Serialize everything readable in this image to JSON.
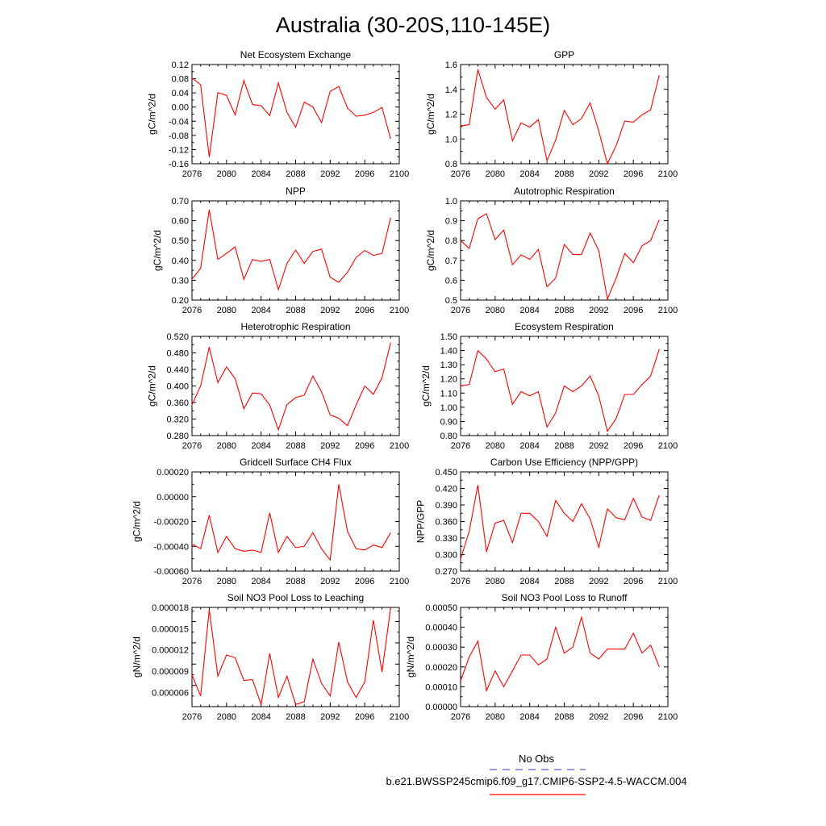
{
  "figure": {
    "title": "Australia (30-20S,110-145E)",
    "legend": {
      "obs_label": "No Obs",
      "obs_color": "#5a5ad8",
      "model_label": "b.e21.BWSSP245cmip6.f09_g17.CMIP6-SSP2-4.5-WACCM.004",
      "model_color": "#ff0000"
    }
  },
  "chart_data": [
    {
      "type": "line",
      "title": "Net Ecosystem Exchange",
      "ylabel": "gC/m^2/d",
      "xlim": [
        2076,
        2100
      ],
      "ylim": [
        -0.16,
        0.12
      ],
      "xticks": [
        "2076",
        "2080",
        "2084",
        "2088",
        "2092",
        "2096",
        "2100"
      ],
      "yticks": [
        "0.12",
        "0.08",
        "0.04",
        "0.00",
        "-0.04",
        "-0.08",
        "-0.12",
        "-0.16"
      ],
      "ytick_values": [
        0.12,
        0.08,
        0.04,
        0.0,
        -0.04,
        -0.08,
        -0.12,
        -0.16
      ],
      "color": "#ff0000",
      "x": [
        2076,
        2077,
        2078,
        2079,
        2080,
        2081,
        2082,
        2083,
        2084,
        2085,
        2086,
        2087,
        2088,
        2089,
        2090,
        2091,
        2092,
        2093,
        2094,
        2095,
        2096,
        2097,
        2098,
        2099
      ],
      "values": [
        0.082,
        0.063,
        -0.141,
        0.041,
        0.033,
        -0.022,
        0.075,
        0.007,
        0.004,
        -0.024,
        0.068,
        -0.015,
        -0.057,
        0.014,
        0.0,
        -0.044,
        0.044,
        0.058,
        -0.003,
        -0.026,
        -0.023,
        -0.015,
        -0.001,
        -0.09
      ]
    },
    {
      "type": "line",
      "title": "GPP",
      "ylabel": "gC/m^2/d",
      "xlim": [
        2076,
        2100
      ],
      "ylim": [
        0.8,
        1.6
      ],
      "xticks": [
        "2076",
        "2080",
        "2084",
        "2088",
        "2092",
        "2096",
        "2100"
      ],
      "yticks": [
        "1.6",
        "1.4",
        "1.2",
        "1.0",
        "0.8"
      ],
      "ytick_values": [
        1.6,
        1.4,
        1.2,
        1.0,
        0.8
      ],
      "color": "#ff0000",
      "x": [
        2076,
        2077,
        2078,
        2079,
        2080,
        2081,
        2082,
        2083,
        2084,
        2085,
        2086,
        2087,
        2088,
        2089,
        2090,
        2091,
        2092,
        2093,
        2094,
        2095,
        2096,
        2097,
        2098,
        2099
      ],
      "values": [
        1.105,
        1.115,
        1.56,
        1.335,
        1.24,
        1.315,
        0.985,
        1.13,
        1.095,
        1.155,
        0.825,
        0.99,
        1.23,
        1.115,
        1.165,
        1.29,
        1.065,
        0.8,
        0.945,
        1.145,
        1.135,
        1.195,
        1.235,
        1.515
      ]
    },
    {
      "type": "line",
      "title": "NPP",
      "ylabel": "gC/m^2/d",
      "xlim": [
        2076,
        2100
      ],
      "ylim": [
        0.2,
        0.7
      ],
      "xticks": [
        "2076",
        "2080",
        "2084",
        "2088",
        "2092",
        "2096",
        "2100"
      ],
      "yticks": [
        "0.70",
        "0.60",
        "0.50",
        "0.40",
        "0.30",
        "0.20"
      ],
      "ytick_values": [
        0.7,
        0.6,
        0.5,
        0.4,
        0.3,
        0.2
      ],
      "color": "#ff0000",
      "x": [
        2076,
        2077,
        2078,
        2079,
        2080,
        2081,
        2082,
        2083,
        2084,
        2085,
        2086,
        2087,
        2088,
        2089,
        2090,
        2091,
        2092,
        2093,
        2094,
        2095,
        2096,
        2097,
        2098,
        2099
      ],
      "values": [
        0.305,
        0.36,
        0.655,
        0.405,
        0.435,
        0.468,
        0.305,
        0.405,
        0.395,
        0.405,
        0.253,
        0.385,
        0.452,
        0.385,
        0.445,
        0.457,
        0.315,
        0.29,
        0.34,
        0.415,
        0.45,
        0.425,
        0.435,
        0.615
      ]
    },
    {
      "type": "line",
      "title": "Autotrophic Respiration",
      "ylabel": "gC/m^2/d",
      "xlim": [
        2076,
        2100
      ],
      "ylim": [
        0.5,
        1.0
      ],
      "xticks": [
        "2076",
        "2080",
        "2084",
        "2088",
        "2092",
        "2096",
        "2100"
      ],
      "yticks": [
        "1.0",
        "0.9",
        "0.8",
        "0.7",
        "0.6",
        "0.5"
      ],
      "ytick_values": [
        1.0,
        0.9,
        0.8,
        0.7,
        0.6,
        0.5
      ],
      "color": "#ff0000",
      "x": [
        2076,
        2077,
        2078,
        2079,
        2080,
        2081,
        2082,
        2083,
        2084,
        2085,
        2086,
        2087,
        2088,
        2089,
        2090,
        2091,
        2092,
        2093,
        2094,
        2095,
        2096,
        2097,
        2098,
        2099
      ],
      "values": [
        0.8,
        0.76,
        0.91,
        0.935,
        0.805,
        0.853,
        0.678,
        0.728,
        0.705,
        0.755,
        0.567,
        0.61,
        0.78,
        0.73,
        0.73,
        0.838,
        0.75,
        0.505,
        0.61,
        0.735,
        0.688,
        0.773,
        0.8,
        0.905
      ]
    },
    {
      "type": "line",
      "title": "Heterotrophic Respiration",
      "ylabel": "gC/m^2/d",
      "xlim": [
        2076,
        2100
      ],
      "ylim": [
        0.28,
        0.52
      ],
      "xticks": [
        "2076",
        "2080",
        "2084",
        "2088",
        "2092",
        "2096",
        "2100"
      ],
      "yticks": [
        "0.520",
        "0.480",
        "0.440",
        "0.400",
        "0.360",
        "0.320",
        "0.280"
      ],
      "ytick_values": [
        0.52,
        0.48,
        0.44,
        0.4,
        0.36,
        0.32,
        0.28
      ],
      "color": "#ff0000",
      "x": [
        2076,
        2077,
        2078,
        2079,
        2080,
        2081,
        2082,
        2083,
        2084,
        2085,
        2086,
        2087,
        2088,
        2089,
        2090,
        2091,
        2092,
        2093,
        2094,
        2095,
        2096,
        2097,
        2098,
        2099
      ],
      "values": [
        0.355,
        0.4,
        0.494,
        0.408,
        0.446,
        0.418,
        0.345,
        0.383,
        0.381,
        0.354,
        0.294,
        0.355,
        0.372,
        0.378,
        0.424,
        0.386,
        0.33,
        0.322,
        0.304,
        0.354,
        0.4,
        0.38,
        0.42,
        0.505
      ]
    },
    {
      "type": "line",
      "title": "Ecosystem Respiration",
      "ylabel": "gC/m^2/d",
      "xlim": [
        2076,
        2100
      ],
      "ylim": [
        0.8,
        1.5
      ],
      "xticks": [
        "2076",
        "2080",
        "2084",
        "2088",
        "2092",
        "2096",
        "2100"
      ],
      "yticks": [
        "1.50",
        "1.40",
        "1.30",
        "1.20",
        "1.10",
        "1.00",
        "0.90",
        "0.80"
      ],
      "ytick_values": [
        1.5,
        1.4,
        1.3,
        1.2,
        1.1,
        1.0,
        0.9,
        0.8
      ],
      "color": "#ff0000",
      "x": [
        2076,
        2077,
        2078,
        2079,
        2080,
        2081,
        2082,
        2083,
        2084,
        2085,
        2086,
        2087,
        2088,
        2089,
        2090,
        2091,
        2092,
        2093,
        2094,
        2095,
        2096,
        2097,
        2098,
        2099
      ],
      "values": [
        1.15,
        1.16,
        1.4,
        1.34,
        1.25,
        1.27,
        1.02,
        1.11,
        1.08,
        1.11,
        0.86,
        0.96,
        1.15,
        1.11,
        1.15,
        1.22,
        1.08,
        0.83,
        0.92,
        1.09,
        1.09,
        1.16,
        1.22,
        1.41
      ]
    },
    {
      "type": "line",
      "title": "Gridcell Surface CH4 Flux",
      "ylabel": "gC/m^2/d",
      "xlim": [
        2076,
        2100
      ],
      "ylim": [
        -0.0006,
        0.0002
      ],
      "xticks": [
        "2076",
        "2080",
        "2084",
        "2088",
        "2092",
        "2096",
        "2100"
      ],
      "yticks": [
        "0.00020",
        "0.00000",
        "-0.00020",
        "-0.00040",
        "-0.00060"
      ],
      "ytick_values": [
        0.0002,
        0.0,
        -0.0002,
        -0.0004,
        -0.0006
      ],
      "color": "#ff0000",
      "x": [
        2076,
        2077,
        2078,
        2079,
        2080,
        2081,
        2082,
        2083,
        2084,
        2085,
        2086,
        2087,
        2088,
        2089,
        2090,
        2091,
        2092,
        2093,
        2094,
        2095,
        2096,
        2097,
        2098,
        2099
      ],
      "values": [
        -0.00038,
        -0.00042,
        -0.00015,
        -0.00045,
        -0.00032,
        -0.00042,
        -0.00044,
        -0.00043,
        -0.00045,
        -0.00013,
        -0.00045,
        -0.00032,
        -0.00041,
        -0.0004,
        -0.00029,
        -0.00042,
        -0.00051,
        0.0001,
        -0.00028,
        -0.00042,
        -0.00043,
        -0.00039,
        -0.00041,
        -0.00029
      ]
    },
    {
      "type": "line",
      "title": "Carbon Use Efficiency (NPP/GPP)",
      "ylabel": "NPP/GPP",
      "xlim": [
        2076,
        2100
      ],
      "ylim": [
        0.27,
        0.45
      ],
      "xticks": [
        "2076",
        "2080",
        "2084",
        "2088",
        "2092",
        "2096",
        "2100"
      ],
      "yticks": [
        "0.450",
        "0.420",
        "0.390",
        "0.360",
        "0.330",
        "0.300",
        "0.270"
      ],
      "ytick_values": [
        0.45,
        0.42,
        0.39,
        0.36,
        0.33,
        0.3,
        0.27
      ],
      "color": "#ff0000",
      "x": [
        2076,
        2077,
        2078,
        2079,
        2080,
        2081,
        2082,
        2083,
        2084,
        2085,
        2086,
        2087,
        2088,
        2089,
        2090,
        2091,
        2092,
        2093,
        2094,
        2095,
        2096,
        2097,
        2098,
        2099
      ],
      "values": [
        0.292,
        0.342,
        0.426,
        0.305,
        0.357,
        0.362,
        0.322,
        0.375,
        0.375,
        0.36,
        0.333,
        0.398,
        0.375,
        0.36,
        0.392,
        0.365,
        0.313,
        0.383,
        0.367,
        0.363,
        0.402,
        0.368,
        0.362,
        0.408
      ]
    },
    {
      "type": "line",
      "title": "Soil NO3 Pool Loss to Leaching",
      "ylabel": "gN/m^2/d",
      "xlim": [
        2076,
        2100
      ],
      "ylim": [
        4e-06,
        1.8e-05
      ],
      "xticks": [
        "2076",
        "2080",
        "2084",
        "2088",
        "2092",
        "2096",
        "2100"
      ],
      "yticks": [
        "0.000018",
        "0.000015",
        "0.000012",
        "0.000009",
        "0.000006"
      ],
      "ytick_values": [
        1.8e-05,
        1.5e-05,
        1.2e-05,
        9e-06,
        6e-06
      ],
      "color": "#ff0000",
      "x": [
        2076,
        2077,
        2078,
        2079,
        2080,
        2081,
        2082,
        2083,
        2084,
        2085,
        2086,
        2087,
        2088,
        2089,
        2090,
        2091,
        2092,
        2093,
        2094,
        2095,
        2096,
        2097,
        2098,
        2099
      ],
      "values": [
        8.5e-06,
        5.5e-06,
        1.77e-05,
        8.3e-06,
        1.13e-05,
        1.09e-05,
        7.7e-06,
        7.8e-06,
        4.3e-06,
        1.15e-05,
        5.3e-06,
        8.3e-06,
        4.3e-06,
        4.7e-06,
        1.07e-05,
        7.3e-06,
        5.5e-06,
        1.31e-05,
        7.5e-06,
        5.3e-06,
        7.5e-06,
        1.62e-05,
        8.9e-06,
        1.8e-05
      ]
    },
    {
      "type": "line",
      "title": "Soil NO3 Pool Loss to Runoff",
      "ylabel": "gN/m^2/d",
      "xlim": [
        2076,
        2100
      ],
      "ylim": [
        0.0,
        0.0005
      ],
      "xticks": [
        "2076",
        "2080",
        "2084",
        "2088",
        "2092",
        "2096",
        "2100"
      ],
      "yticks": [
        "0.00050",
        "0.00040",
        "0.00030",
        "0.00020",
        "0.00010",
        "0.00000"
      ],
      "ytick_values": [
        0.0005,
        0.0004,
        0.0003,
        0.0002,
        0.0001,
        0.0
      ],
      "color": "#ff0000",
      "x": [
        2076,
        2077,
        2078,
        2079,
        2080,
        2081,
        2082,
        2083,
        2084,
        2085,
        2086,
        2087,
        2088,
        2089,
        2090,
        2091,
        2092,
        2093,
        2094,
        2095,
        2096,
        2097,
        2098,
        2099
      ],
      "values": [
        0.00013,
        0.00025,
        0.00033,
        8e-05,
        0.00018,
        0.0001,
        0.00018,
        0.00026,
        0.00026,
        0.00021,
        0.00024,
        0.0004,
        0.00027,
        0.0003,
        0.00045,
        0.00027,
        0.00024,
        0.00029,
        0.00029,
        0.00029,
        0.00037,
        0.00027,
        0.00031,
        0.0002
      ]
    }
  ]
}
